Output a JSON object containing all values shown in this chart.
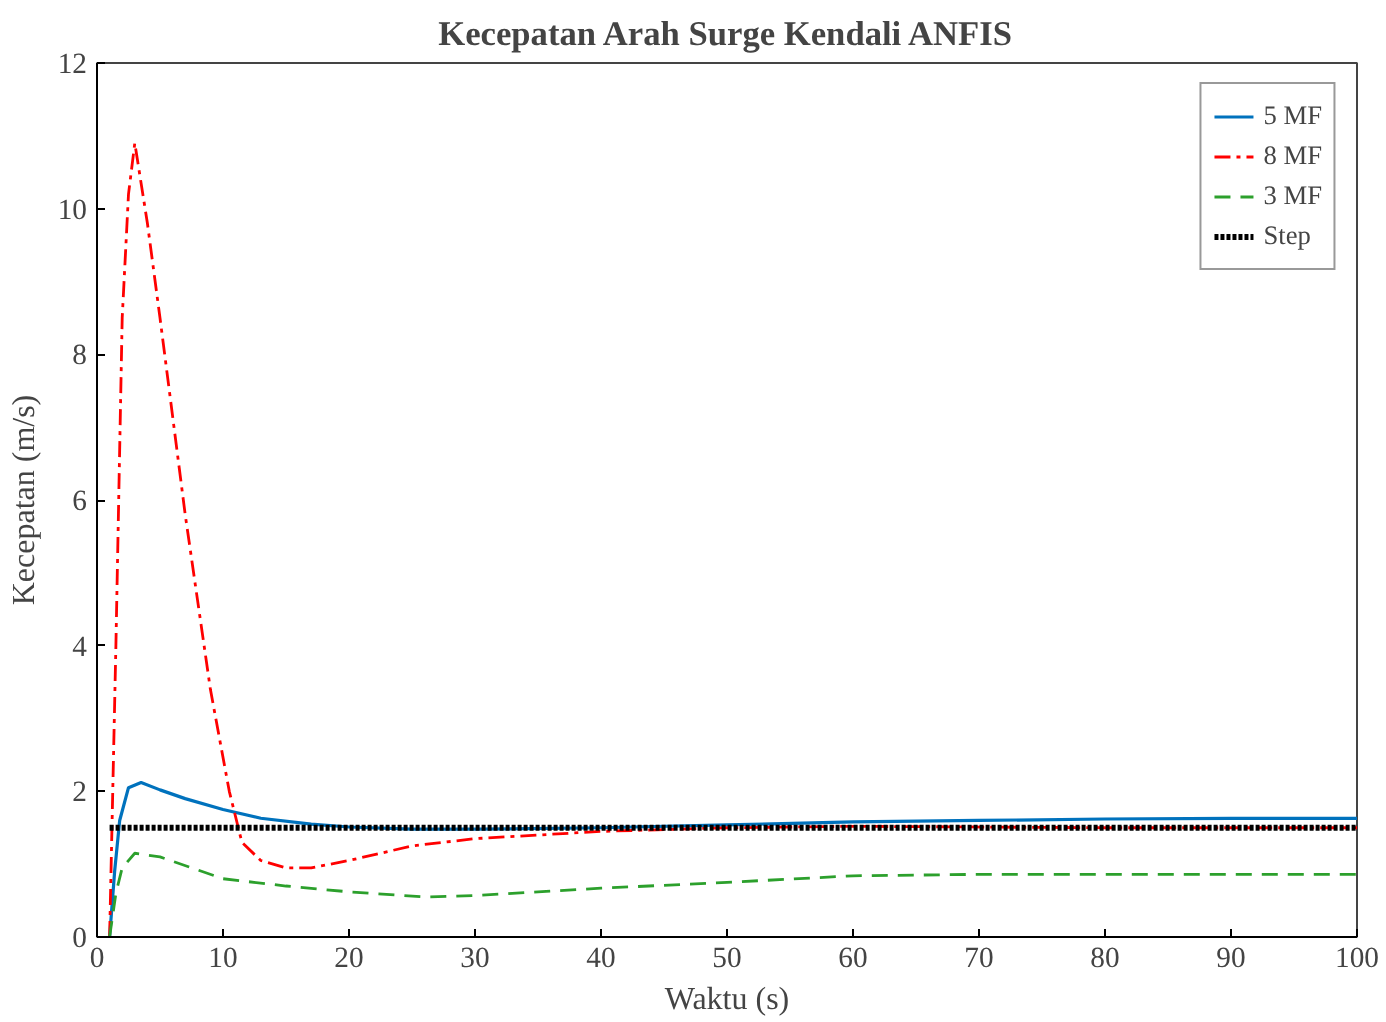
{
  "chart_data": {
    "type": "line",
    "title": "Kecepatan Arah Surge Kendali ANFIS",
    "xlabel": "Waktu (s)",
    "ylabel": "Kecepatan (m/s)",
    "xlim": [
      0,
      100
    ],
    "xticks": [
      0,
      10,
      20,
      30,
      40,
      50,
      60,
      70,
      80,
      90,
      100
    ],
    "ylim": [
      0,
      12
    ],
    "yticks": [
      0,
      2,
      4,
      6,
      8,
      10,
      12
    ],
    "grid": false,
    "legend": "top right",
    "series": [
      {
        "name": "5 MF",
        "color": "#0072bd",
        "line_style": "solid",
        "x": [
          1,
          1.4,
          1.8,
          2.5,
          3.5,
          5,
          7,
          10,
          13,
          17,
          20,
          25,
          30,
          40,
          50,
          60,
          70,
          80,
          90,
          100
        ],
        "values": [
          0,
          0.9,
          1.6,
          2.05,
          2.12,
          2.02,
          1.9,
          1.75,
          1.63,
          1.55,
          1.51,
          1.48,
          1.48,
          1.5,
          1.54,
          1.58,
          1.6,
          1.62,
          1.63,
          1.63
        ]
      },
      {
        "name": "8 MF",
        "color": "#ff0000",
        "line_style": "dashdot",
        "x": [
          1,
          1.5,
          2,
          2.5,
          3,
          4,
          5,
          7,
          9,
          10.5,
          11.5,
          13,
          15,
          17,
          20,
          25,
          30,
          40,
          50,
          60,
          80,
          100
        ],
        "values": [
          0,
          4,
          8.5,
          10.2,
          10.9,
          9.8,
          8.5,
          5.8,
          3.4,
          2.0,
          1.3,
          1.05,
          0.95,
          0.95,
          1.05,
          1.25,
          1.35,
          1.45,
          1.5,
          1.52,
          1.5,
          1.5
        ]
      },
      {
        "name": "3 MF",
        "color": "#2ca02c",
        "line_style": "dashed",
        "x": [
          1,
          1.5,
          2,
          3,
          5,
          10,
          15,
          20,
          26,
          30,
          35,
          40,
          50,
          60,
          70,
          80,
          100
        ],
        "values": [
          0,
          0.6,
          0.95,
          1.15,
          1.1,
          0.8,
          0.7,
          0.62,
          0.55,
          0.57,
          0.62,
          0.67,
          0.75,
          0.84,
          0.86,
          0.86,
          0.86
        ]
      },
      {
        "name": "Step",
        "color": "#000000",
        "line_style": "dotted",
        "x": [
          1,
          100
        ],
        "values": [
          1.5,
          1.5
        ]
      }
    ]
  }
}
